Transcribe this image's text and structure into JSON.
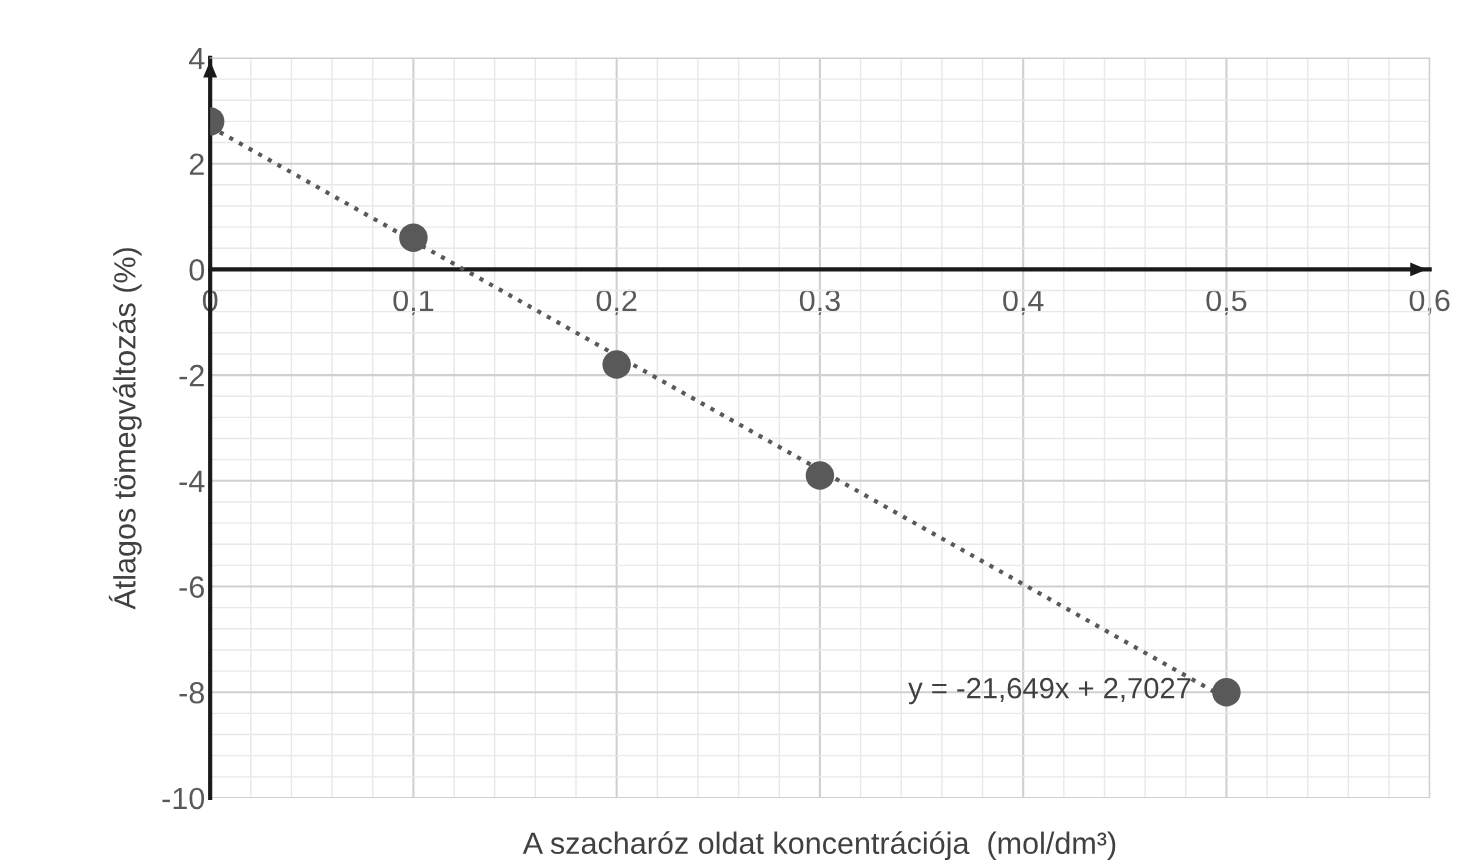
{
  "chart_data": {
    "type": "scatter",
    "xlabel": "A szacharóz oldat koncentrációja  (mol/dm³)",
    "ylabel": "Átlagos tömegváltozás (%)",
    "series": [
      {
        "color": "#595959",
        "marker": "circle",
        "x": [
          0,
          0.1,
          0.2,
          0.3,
          0.5
        ],
        "values": [
          2.8,
          0.6,
          -1.8,
          -3.9,
          -8.0
        ]
      },
      {
        "type": "line",
        "color": "#595959",
        "line_style": "dotted",
        "marker": "none",
        "x": [
          0,
          0.5
        ],
        "values": [
          2.7,
          -8.12
        ]
      }
    ],
    "annotations": [
      "y = -21,649x + 2,7027"
    ],
    "xlim": [
      0,
      0.6
    ],
    "xticks": [
      0,
      {
        "value": 0.1,
        "label": "0,1"
      },
      {
        "value": 0.2,
        "label": "0,2"
      },
      {
        "value": 0.3,
        "label": "0,3"
      },
      {
        "value": 0.4,
        "label": "0,4"
      },
      {
        "value": 0.5,
        "label": "0,5"
      },
      {
        "value": 0.6,
        "label": "0,6"
      }
    ],
    "ylim": [
      -10,
      4
    ],
    "yticks": [
      -10,
      -8,
      -6,
      -4,
      -2,
      0,
      2,
      4
    ],
    "grid": true
  }
}
